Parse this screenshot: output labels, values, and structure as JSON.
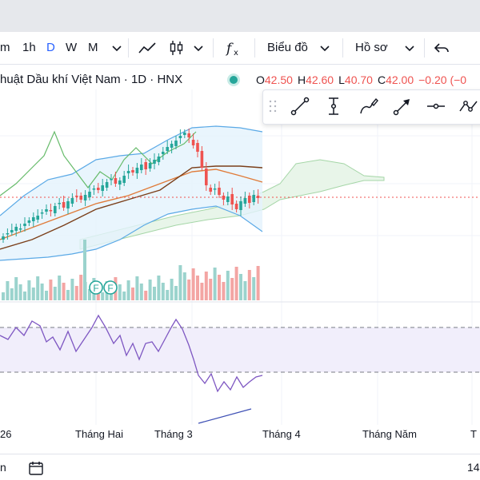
{
  "toolbar": {
    "intervals": [
      "m",
      "1h",
      "D",
      "W",
      "M"
    ],
    "active_interval": "D",
    "chart_type_label": "Biểu đồ",
    "profile_label": "Hồ sơ"
  },
  "symbol": {
    "title": "huật Dầu khí Việt Nam · 1D · HNX",
    "open_label": "O",
    "open": "42.50",
    "high_label": "H",
    "high": "42.60",
    "low_label": "L",
    "low": "40.70",
    "close_label": "C",
    "close": "42.00",
    "change": "−0.20 (−0"
  },
  "markers": [
    "F",
    "F"
  ],
  "time_axis": {
    "labels": [
      "26",
      "Tháng Hai",
      "Tháng 3",
      "Tháng 4",
      "Tháng Năm",
      "T"
    ]
  },
  "bottom_bar": {
    "left_text": "n",
    "right_text": "14"
  },
  "colors": {
    "accent": "#2962ff",
    "up": "#26a69a",
    "down": "#ef5350",
    "rsi_line": "#7e57c2",
    "rsi_band": "#f1eefb"
  },
  "icons": {
    "drawing_tools": [
      "trend-line-icon",
      "vertical-measure-icon",
      "brush-icon",
      "arrow-icon",
      "horizontal-line-icon",
      "path-icon"
    ]
  }
}
